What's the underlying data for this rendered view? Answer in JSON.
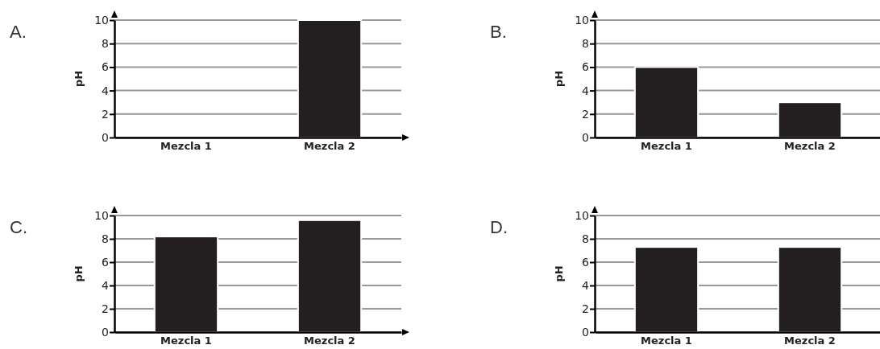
{
  "chart_data": [
    {
      "type": "bar",
      "title": "A.",
      "ylabel": "pH",
      "categories": [
        "Mezcla 1",
        "Mezcla 2"
      ],
      "values": [
        0,
        10
      ],
      "color": "#231f20",
      "ylim": [
        0,
        10
      ],
      "yticks": [
        0,
        2,
        4,
        6,
        8,
        10
      ],
      "grid": "y"
    },
    {
      "type": "bar",
      "title": "B.",
      "ylabel": "pH",
      "categories": [
        "Mezcla 1",
        "Mezcla 2"
      ],
      "values": [
        6,
        3
      ],
      "color": "#231f20",
      "ylim": [
        0,
        10
      ],
      "yticks": [
        0,
        2,
        4,
        6,
        8,
        10
      ],
      "grid": "y"
    },
    {
      "type": "bar",
      "title": "C.",
      "ylabel": "pH",
      "categories": [
        "Mezcla 1",
        "Mezcla 2"
      ],
      "values": [
        8.2,
        9.6
      ],
      "color": "#231f20",
      "ylim": [
        0,
        10
      ],
      "yticks": [
        0,
        2,
        4,
        6,
        8,
        10
      ],
      "grid": "y"
    },
    {
      "type": "bar",
      "title": "D.",
      "ylabel": "pH",
      "categories": [
        "Mezcla 1",
        "Mezcla 2"
      ],
      "values": [
        7.3,
        7.3
      ],
      "color": "#231f20",
      "ylim": [
        0,
        10
      ],
      "yticks": [
        0,
        2,
        4,
        6,
        8,
        10
      ],
      "grid": "y"
    }
  ]
}
